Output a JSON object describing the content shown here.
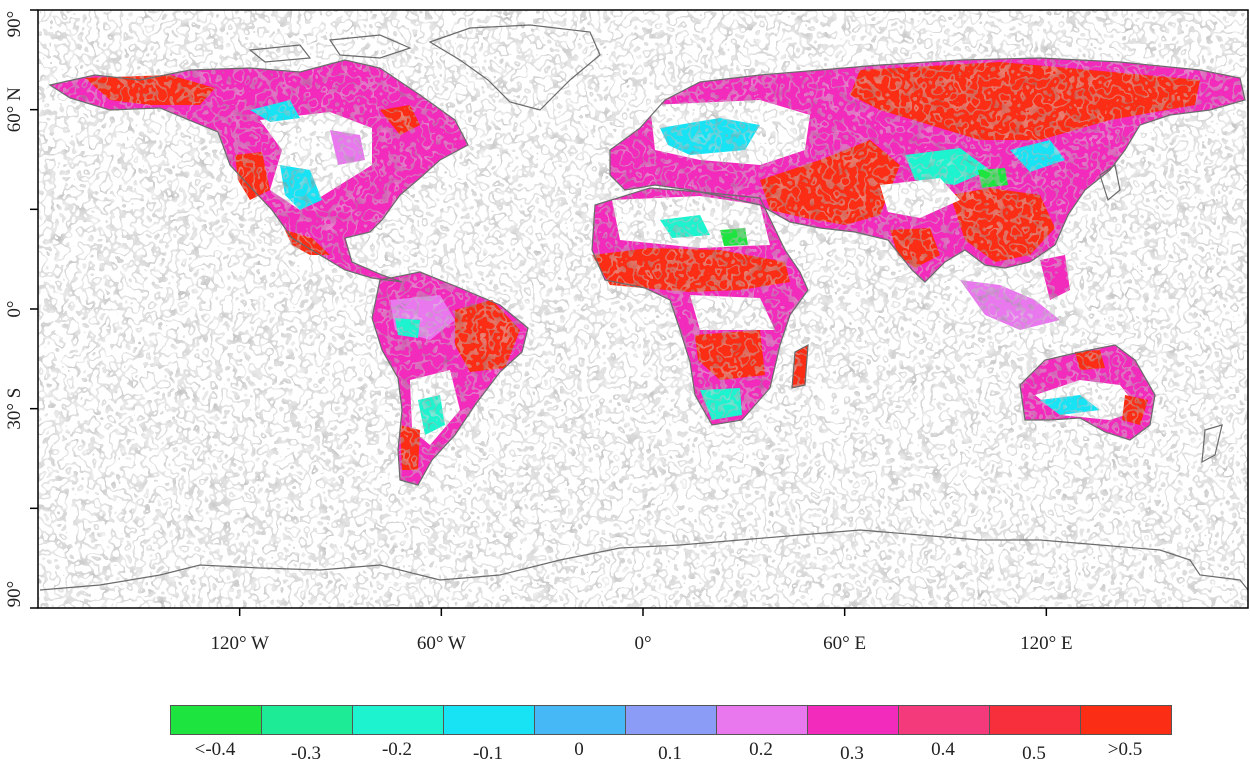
{
  "map": {
    "x_ticks": [
      {
        "label": "120° W",
        "lon": -120
      },
      {
        "label": "60° W",
        "lon": -60
      },
      {
        "label": "0°",
        "lon": 0
      },
      {
        "label": "60° E",
        "lon": 60
      },
      {
        "label": "120° E",
        "lon": 120
      }
    ],
    "y_ticks": [
      {
        "label": "90°",
        "lat": 90
      },
      {
        "label": "60° N",
        "lat": 60
      },
      {
        "label": "0°",
        "lat": 0
      },
      {
        "label": "30° S",
        "lat": -30
      },
      {
        "label": "90°",
        "lat": -90
      }
    ],
    "unlabeled_y_ticks": [
      30,
      -60
    ],
    "lon_range": [
      -180,
      180
    ],
    "lat_range": [
      -90,
      90
    ],
    "coastline_color": "#6b6b6b",
    "frame_color": "#000000"
  },
  "legend": {
    "items": [
      {
        "label": "<-0.4",
        "color": "#1ee43f"
      },
      {
        "label": "-0.3",
        "color": "#1eeb96"
      },
      {
        "label": "-0.2",
        "color": "#1ef3cf"
      },
      {
        "label": "-0.1",
        "color": "#17e3f5"
      },
      {
        "label": "0",
        "color": "#46b8f5"
      },
      {
        "label": "0.1",
        "color": "#8a9cf5"
      },
      {
        "label": "0.2",
        "color": "#e978ee"
      },
      {
        "label": "0.3",
        "color": "#f22bbd"
      },
      {
        "label": "0.4",
        "color": "#f53a7b"
      },
      {
        "label": "0.5",
        "color": "#f72f3c"
      },
      {
        "label": ">0.5",
        "color": "#fb2d14"
      }
    ]
  }
}
